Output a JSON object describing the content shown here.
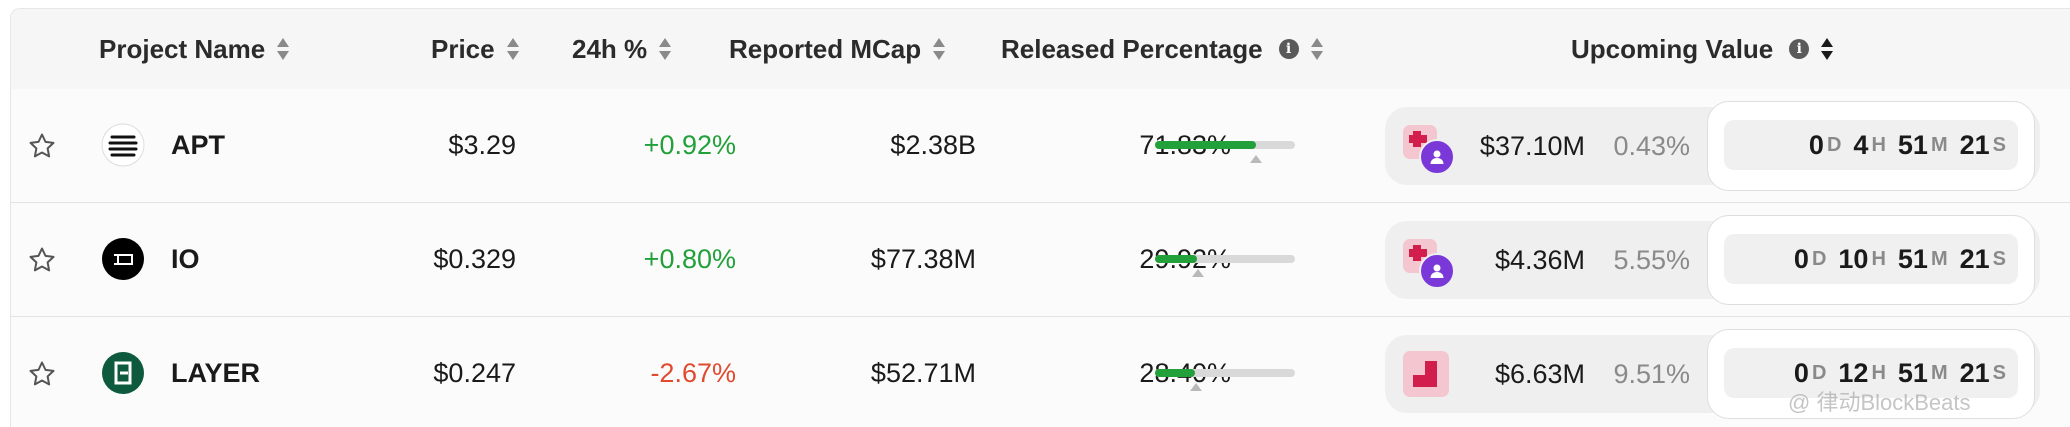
{
  "header": {
    "project_name": "Project Name",
    "price": "Price",
    "change_24h": "24h %",
    "reported_mcap": "Reported MCap",
    "released_percentage": "Released Percentage",
    "upcoming_value": "Upcoming Value",
    "info_glyph": "i"
  },
  "rows": [
    {
      "name": "APT",
      "icon": "apt-logo-icon",
      "price": "$3.29",
      "change": "+0.92%",
      "direction": "up",
      "mcap": "$2.38B",
      "released": "71.83%",
      "released_fraction": 0.7183,
      "marker_fraction": 0.72,
      "upcoming_value": "$37.10M",
      "upcoming_pct": "0.43%",
      "timer": {
        "d": "0",
        "h": "4",
        "m": "51",
        "s": "21"
      }
    },
    {
      "name": "IO",
      "icon": "io-logo-icon",
      "price": "$0.329",
      "change": "+0.80%",
      "direction": "up",
      "mcap": "$77.38M",
      "released": "29.92%",
      "released_fraction": 0.2992,
      "marker_fraction": 0.31,
      "upcoming_value": "$4.36M",
      "upcoming_pct": "5.55%",
      "timer": {
        "d": "0",
        "h": "10",
        "m": "51",
        "s": "21"
      }
    },
    {
      "name": "LAYER",
      "icon": "layer-logo-icon",
      "price": "$0.247",
      "change": "-2.67%",
      "direction": "down",
      "mcap": "$52.71M",
      "released": "28.40%",
      "released_fraction": 0.284,
      "marker_fraction": 0.29,
      "upcoming_value": "$6.63M",
      "upcoming_pct": "9.51%",
      "timer": {
        "d": "0",
        "h": "12",
        "m": "51",
        "s": "21"
      }
    }
  ],
  "timer_units": {
    "d": "D",
    "h": "H",
    "m": "M",
    "s": "S"
  },
  "watermark": "@ 律动BlockBeats",
  "colors": {
    "up": "#22a03a",
    "down": "#e04a2f",
    "bar_fill": "#22a03a",
    "bar_track": "#d9d9d9",
    "unlock_pink": "#d11e4c",
    "person_purple": "#7a38d8"
  }
}
